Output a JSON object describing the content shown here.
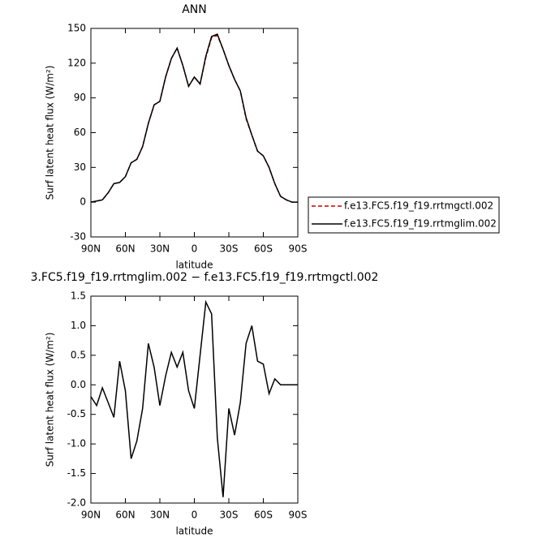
{
  "chart_data": [
    {
      "type": "line",
      "title": "ANN",
      "xlabel": "latitude",
      "ylabel": "Surf latent heat flux (W/m²)",
      "x": [
        90,
        85,
        80,
        75,
        70,
        65,
        60,
        55,
        50,
        45,
        40,
        35,
        30,
        25,
        20,
        15,
        10,
        5,
        0,
        -5,
        -10,
        -15,
        -20,
        -25,
        -30,
        -35,
        -40,
        -45,
        -50,
        -55,
        -60,
        -65,
        -70,
        -75,
        -80,
        -85,
        -90
      ],
      "series": [
        {
          "name": "f.e13.FC5.f19_f19.rrtmgctl.002",
          "color": "#cc0000",
          "linestyle": "dashed",
          "values": [
            0,
            1,
            2,
            8,
            16,
            17,
            22,
            34,
            37,
            48,
            68,
            84,
            87,
            108,
            124,
            133,
            118,
            100,
            108,
            102,
            125,
            142,
            144,
            132,
            118,
            106,
            96,
            72,
            58,
            44,
            40,
            30,
            16,
            5,
            2,
            0,
            0
          ]
        },
        {
          "name": "f.e13.FC5.f19_f19.rrtmglim.002",
          "color": "#000000",
          "linestyle": "solid",
          "values": [
            0,
            1,
            2,
            8,
            16,
            17,
            22,
            34,
            37,
            48,
            68,
            84,
            87,
            108,
            124,
            133,
            118,
            100,
            108,
            102,
            126,
            143,
            145,
            132,
            118,
            106,
            96,
            73,
            58,
            44,
            40,
            30,
            16,
            5,
            2,
            0,
            0
          ]
        }
      ],
      "xlim": [
        90,
        -90
      ],
      "xticks": [
        {
          "value": 90,
          "label": "90N"
        },
        {
          "value": 60,
          "label": "60N"
        },
        {
          "value": 30,
          "label": "30N"
        },
        0,
        {
          "value": -30,
          "label": "30S"
        },
        {
          "value": -60,
          "label": "60S"
        },
        {
          "value": -90,
          "label": "90S"
        }
      ],
      "ylim": [
        -30,
        150
      ],
      "yticks": [
        150,
        120,
        90,
        60,
        30,
        0,
        -30
      ]
    },
    {
      "type": "line",
      "title": "3.FC5.f19_f19.rrtmglim.002 − f.e13.FC5.f19_f19.rrtmgctl.002",
      "xlabel": "latitude",
      "ylabel": "Surf latent heat flux (W/m²)",
      "x": [
        90,
        85,
        80,
        75,
        70,
        65,
        60,
        55,
        50,
        45,
        40,
        35,
        30,
        25,
        20,
        15,
        10,
        5,
        0,
        -5,
        -10,
        -15,
        -20,
        -25,
        -30,
        -35,
        -40,
        -45,
        -50,
        -55,
        -60,
        -65,
        -70,
        -75,
        -80,
        -85,
        -90
      ],
      "color": "#000000",
      "values": [
        -0.2,
        -0.35,
        -0.05,
        -0.3,
        -0.55,
        0.4,
        -0.1,
        -1.25,
        -0.95,
        -0.4,
        0.7,
        0.3,
        -0.35,
        0.15,
        0.55,
        0.3,
        0.55,
        -0.1,
        -0.4,
        0.5,
        1.4,
        1.2,
        -0.9,
        -1.9,
        -0.4,
        -0.85,
        -0.3,
        0.7,
        1.0,
        0.4,
        0.35,
        -0.15,
        0.1,
        0,
        0,
        0,
        0
      ],
      "xlim": [
        90,
        -90
      ],
      "xticks": [
        {
          "value": 90,
          "label": "90N"
        },
        {
          "value": 60,
          "label": "60N"
        },
        {
          "value": 30,
          "label": "30N"
        },
        0,
        {
          "value": -30,
          "label": "30S"
        },
        {
          "value": -60,
          "label": "60S"
        },
        {
          "value": -90,
          "label": "90S"
        }
      ],
      "ylim": [
        -2,
        1.5
      ],
      "yticks": [
        1.5,
        {
          "value": 1,
          "label": "1.0"
        },
        0.5,
        {
          "value": 0,
          "label": "0.0"
        },
        -0.5,
        {
          "value": -1,
          "label": "-1.0"
        },
        -1.5,
        {
          "value": -2,
          "label": "-2.0"
        }
      ]
    }
  ]
}
